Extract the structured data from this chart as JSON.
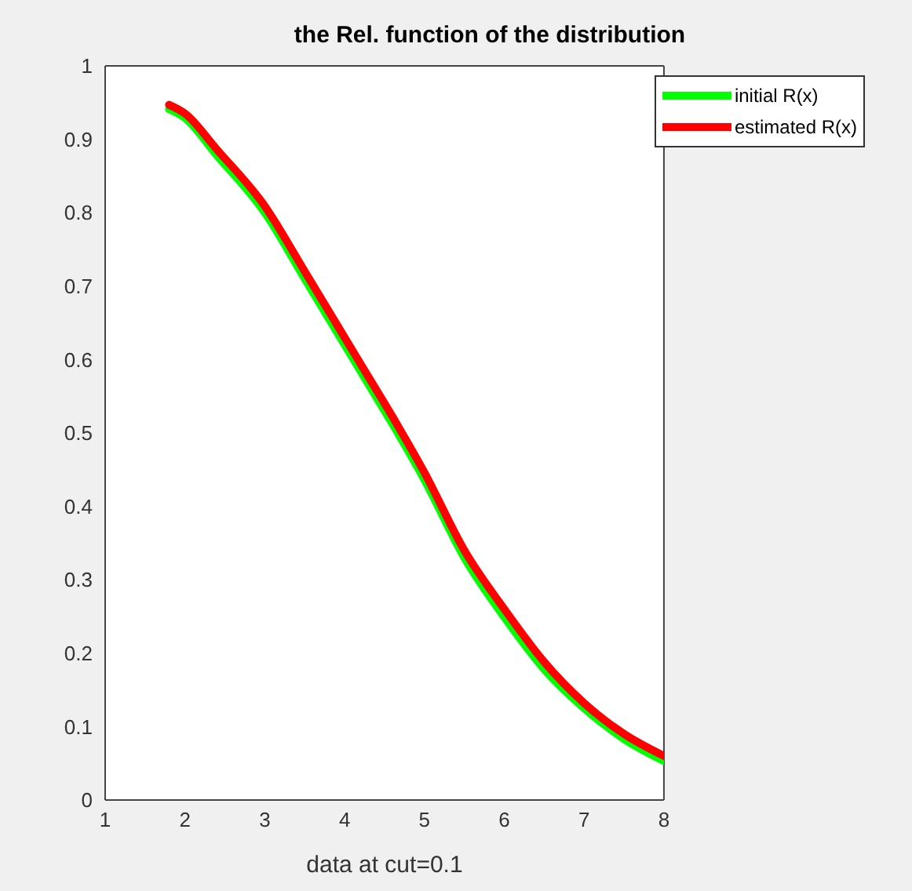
{
  "chart_data": {
    "type": "line",
    "title": "the Rel. function of the distribution",
    "xlabel": "data at cut=0.1",
    "x": [
      1.8,
      2,
      2.4,
      3,
      3.5,
      4,
      4.3,
      4.6,
      5,
      5.5,
      6,
      6.5,
      7,
      7.5,
      8
    ],
    "series": [
      {
        "name": "initial R(x)",
        "color": "#00ff00",
        "values": [
          0.941,
          0.929,
          0.878,
          0.8,
          0.71,
          0.62,
          0.566,
          0.512,
          0.436,
          0.33,
          0.249,
          0.178,
          0.125,
          0.083,
          0.053
        ]
      },
      {
        "name": "estimated R(x)",
        "color": "#ff0000",
        "values": [
          0.947,
          0.935,
          0.886,
          0.809,
          0.72,
          0.63,
          0.576,
          0.522,
          0.446,
          0.34,
          0.26,
          0.188,
          0.132,
          0.09,
          0.06
        ]
      }
    ],
    "xlim": [
      1,
      8
    ],
    "xticks": [
      1,
      2,
      3,
      4,
      5,
      6,
      7,
      8
    ],
    "ylim": [
      0,
      1
    ],
    "yticks": [
      0,
      0.1,
      0.2,
      0.3,
      0.4,
      0.5,
      0.6,
      0.7,
      0.8,
      0.9,
      1
    ],
    "legend": "top right",
    "grid": false,
    "marker": "none",
    "line_style": "solid"
  }
}
